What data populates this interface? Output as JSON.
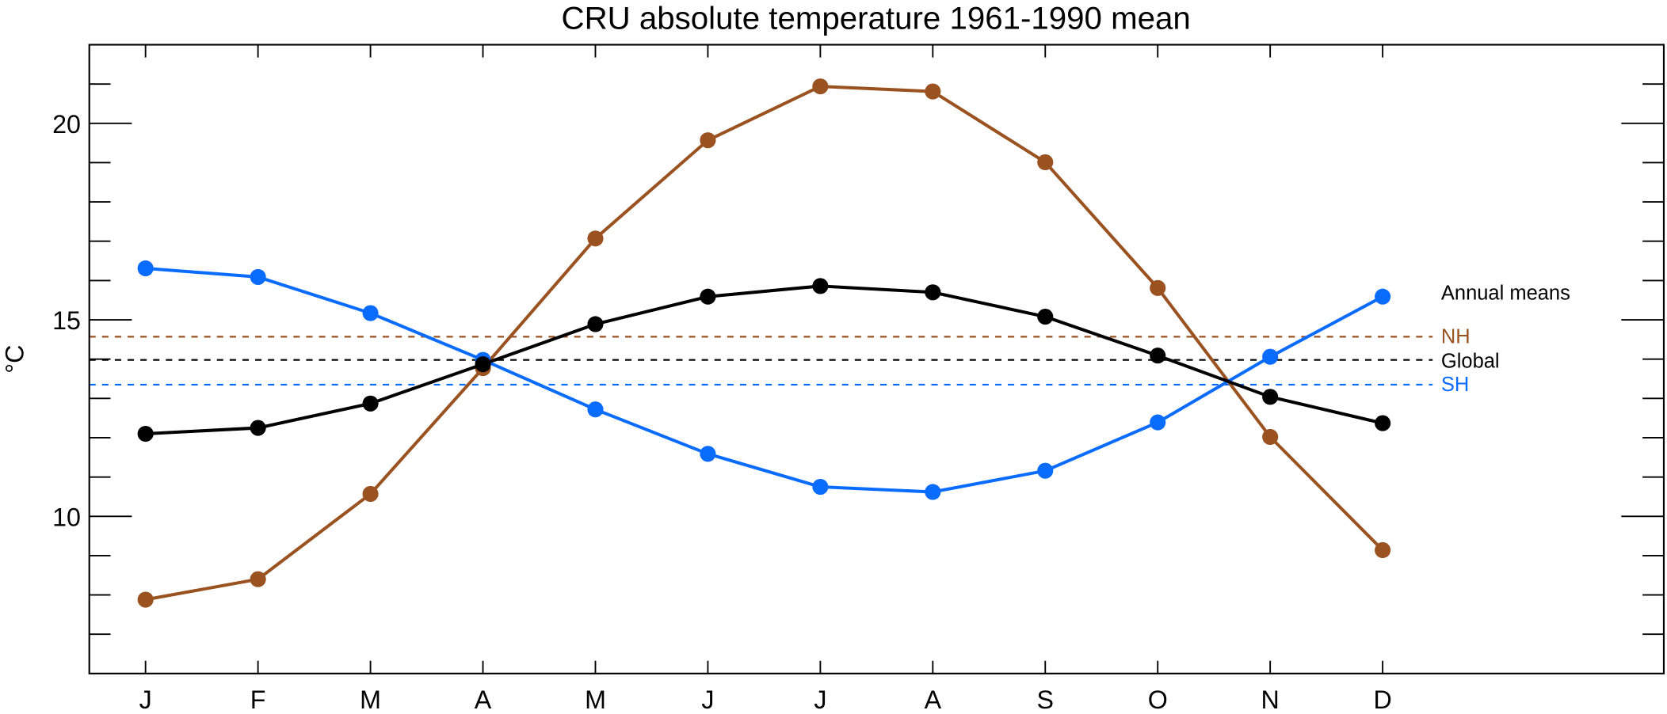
{
  "chart_data": {
    "type": "line",
    "title": "CRU absolute temperature 1961-1990 mean",
    "xlabel": "",
    "ylabel": "°C",
    "categories": [
      "J",
      "F",
      "M",
      "A",
      "M",
      "J",
      "J",
      "A",
      "S",
      "O",
      "N",
      "D"
    ],
    "xlim": [
      0.5,
      14.5
    ],
    "ylim": [
      6,
      22
    ],
    "y_major_ticks": [
      10,
      15,
      20
    ],
    "y_minor_step": 1,
    "grid": false,
    "series": [
      {
        "name": "NH",
        "color": "#9a5220",
        "values": [
          7.88,
          8.4,
          10.57,
          13.77,
          17.07,
          19.57,
          20.94,
          20.81,
          19.01,
          15.81,
          12.02,
          9.14
        ],
        "annual_mean": 14.57
      },
      {
        "name": "Global",
        "color": "#000000",
        "values": [
          12.1,
          12.25,
          12.87,
          13.87,
          14.89,
          15.59,
          15.86,
          15.7,
          15.08,
          14.09,
          13.04,
          12.37
        ],
        "annual_mean": 13.98
      },
      {
        "name": "SH",
        "color": "#0a6cff",
        "values": [
          16.31,
          16.09,
          15.17,
          13.98,
          12.72,
          11.59,
          10.75,
          10.62,
          11.16,
          12.39,
          14.06,
          15.59
        ],
        "annual_mean": 13.35
      }
    ],
    "legend": {
      "title": "Annual means",
      "placement": "right",
      "entries": [
        "NH",
        "Global",
        "SH"
      ]
    }
  }
}
